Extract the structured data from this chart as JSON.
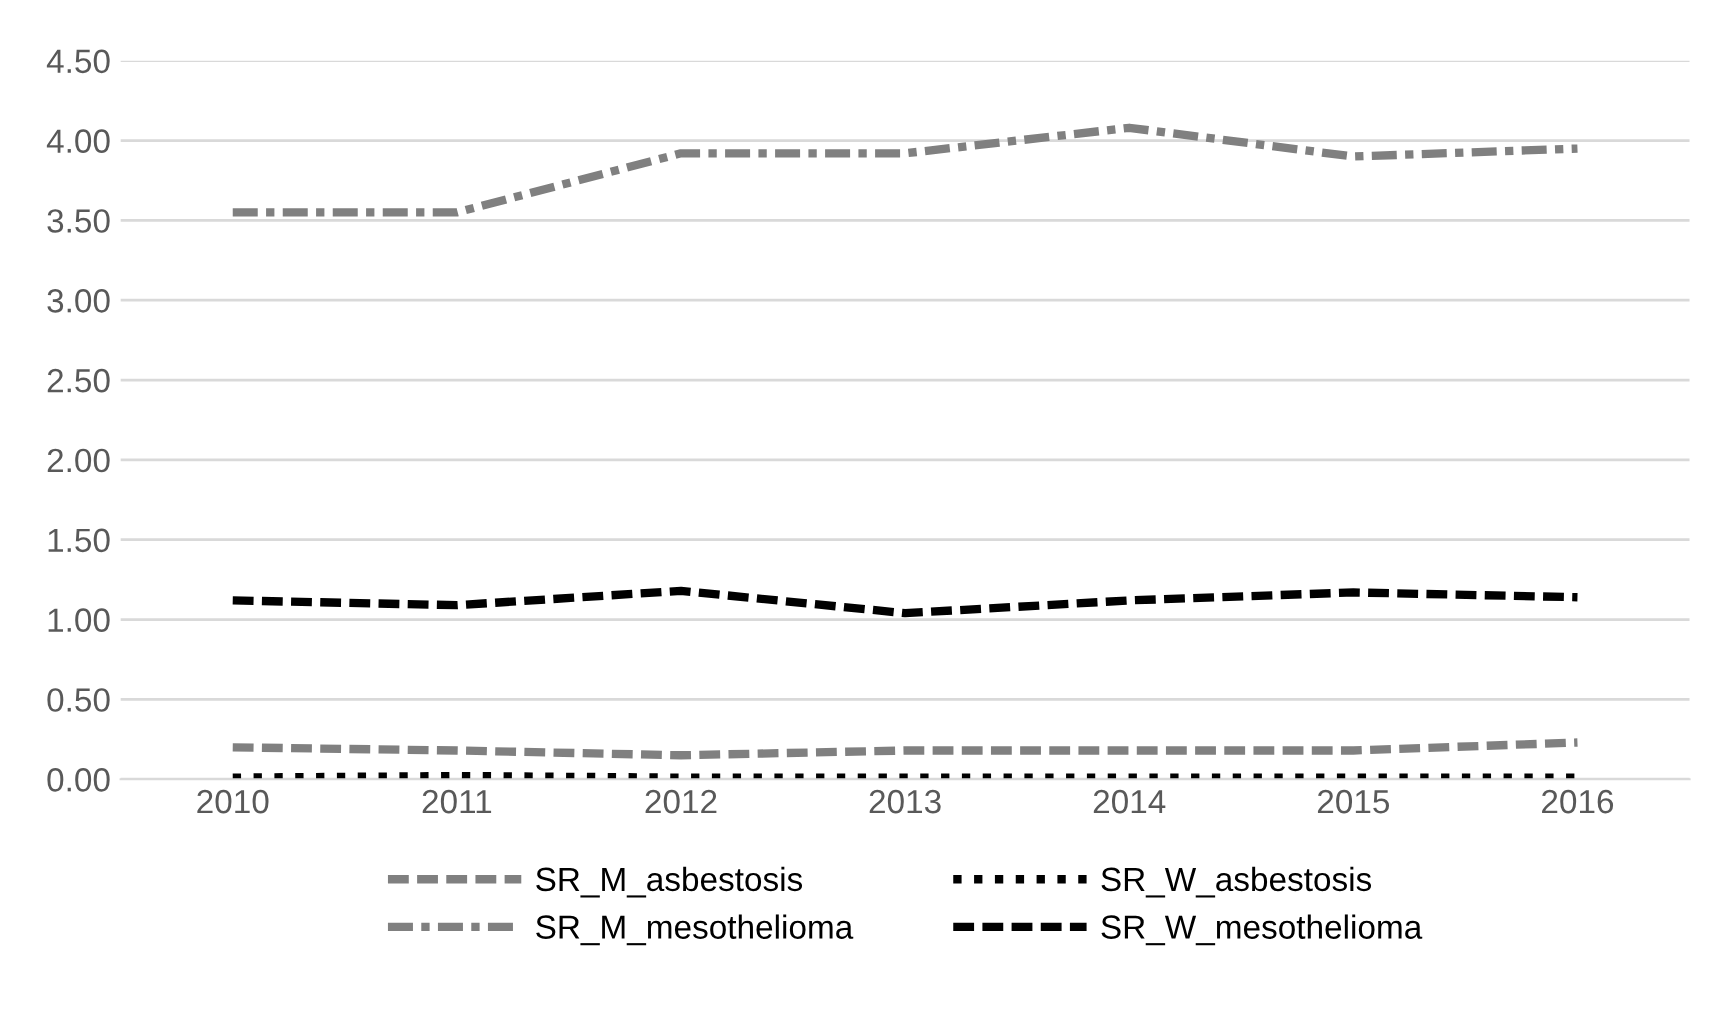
{
  "chart_data": {
    "type": "line",
    "categories": [
      "2010",
      "2011",
      "2012",
      "2013",
      "2014",
      "2015",
      "2016"
    ],
    "series": [
      {
        "name": "SR_M_asbestosis",
        "color": "#808080",
        "line_style": "dashed",
        "values": [
          0.2,
          0.18,
          0.15,
          0.18,
          0.18,
          0.18,
          0.23
        ]
      },
      {
        "name": "SR_W_asbestosis",
        "color": "#000000",
        "line_style": "dotted",
        "values": [
          0.01,
          0.02,
          0.01,
          0.01,
          0.01,
          0.01,
          0.01
        ]
      },
      {
        "name": "SR_M_mesothelioma",
        "color": "#808080",
        "line_style": "dashdot",
        "values": [
          3.55,
          3.55,
          3.92,
          3.92,
          4.08,
          3.9,
          3.95
        ]
      },
      {
        "name": "SR_W_mesothelioma",
        "color": "#000000",
        "line_style": "dashed",
        "values": [
          1.12,
          1.09,
          1.18,
          1.04,
          1.12,
          1.17,
          1.14
        ]
      }
    ],
    "ylim": [
      0,
      4.5
    ],
    "yticks": [
      {
        "value": 0,
        "label": "0.00"
      },
      {
        "value": 0.5,
        "label": "0.50"
      },
      {
        "value": 1,
        "label": "1.00"
      },
      {
        "value": 1.5,
        "label": "1.50"
      },
      {
        "value": 2,
        "label": "2.00"
      },
      {
        "value": 2.5,
        "label": "2.50"
      },
      {
        "value": 3,
        "label": "3.00"
      },
      {
        "value": 3.5,
        "label": "3.50"
      },
      {
        "value": 4,
        "label": "4.00"
      },
      {
        "value": 4.5,
        "label": "4.50"
      }
    ],
    "grid": "y",
    "legend": "bottom",
    "marker": "none"
  }
}
